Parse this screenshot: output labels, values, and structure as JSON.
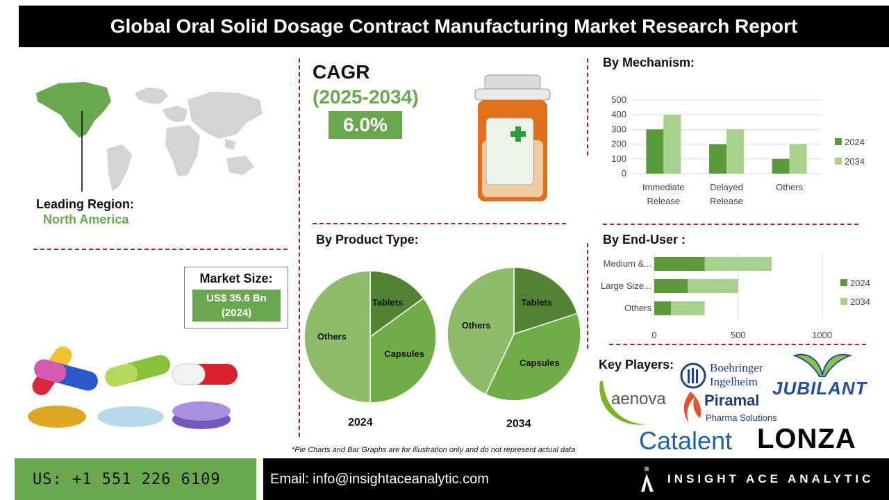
{
  "title": "Global Oral Solid Dosage Contract Manufacturing Market Research Report",
  "cagr": {
    "label": "CAGR",
    "period": "(2025-2034)",
    "value": "6.0%"
  },
  "leading_region": {
    "label": "Leading Region:",
    "value": "North America"
  },
  "market_size": {
    "label": "Market Size:",
    "value_line1": "US$ 35.6 Bn",
    "value_line2": "(2024)"
  },
  "sections": {
    "mechanism": "By Mechanism:",
    "product_type": "By Product Type:",
    "end_user": "By End-User :",
    "key_players": "Key Players:"
  },
  "colors": {
    "series_2024": "#5b9a3a",
    "series_2034": "#a9d18e",
    "accent": "#6aa84f",
    "divider": "#b01c1c"
  },
  "key_players": [
    "Boehringer Ingelheim",
    "JUBILANT",
    "aenova",
    "Piramal",
    "Pharma Solutions",
    "Catalent",
    "LONZA"
  ],
  "disclaimer": "*Pie Charts and Bar Graphs are for illustration only and do not represent actual data",
  "footer": {
    "phone": "US: +1 551 226 6109",
    "email": "Email: info@insightaceanalytic.com",
    "brand": "INSIGHT ACE ANALYTIC"
  },
  "chart_data": [
    {
      "type": "bar",
      "title": "By Mechanism:",
      "categories": [
        "Immediate Release",
        "Delayed Release",
        "Others"
      ],
      "category_lines": [
        [
          "Immediate",
          "Release"
        ],
        [
          "Delayed",
          "Release"
        ],
        [
          "Others"
        ]
      ],
      "series": [
        {
          "name": "2024",
          "values": [
            300,
            200,
            100
          ]
        },
        {
          "name": "2034",
          "values": [
            400,
            300,
            200
          ]
        }
      ],
      "ylim": [
        0,
        500
      ],
      "yticks": [
        0,
        100,
        200,
        300,
        400,
        500
      ],
      "grid": true,
      "legend": "right"
    },
    {
      "type": "bar",
      "orientation": "horizontal-stacked",
      "title": "By End-User :",
      "categories": [
        "Medium &...",
        "Large Size...",
        "Others"
      ],
      "series": [
        {
          "name": "2024",
          "values": [
            300,
            200,
            100
          ]
        },
        {
          "name": "2034",
          "values": [
            400,
            300,
            200
          ]
        }
      ],
      "xlim": [
        0,
        1200
      ],
      "xticks": [
        0,
        500,
        1000
      ],
      "grid": true,
      "legend": "right"
    },
    {
      "type": "pie",
      "title": "2024",
      "labels": [
        "Tablets",
        "Capsules",
        "Others"
      ],
      "values": [
        15,
        35,
        50
      ]
    },
    {
      "type": "pie",
      "title": "2034",
      "labels": [
        "Tablets",
        "Capsules",
        "Others"
      ],
      "values": [
        20,
        37,
        43
      ]
    }
  ]
}
